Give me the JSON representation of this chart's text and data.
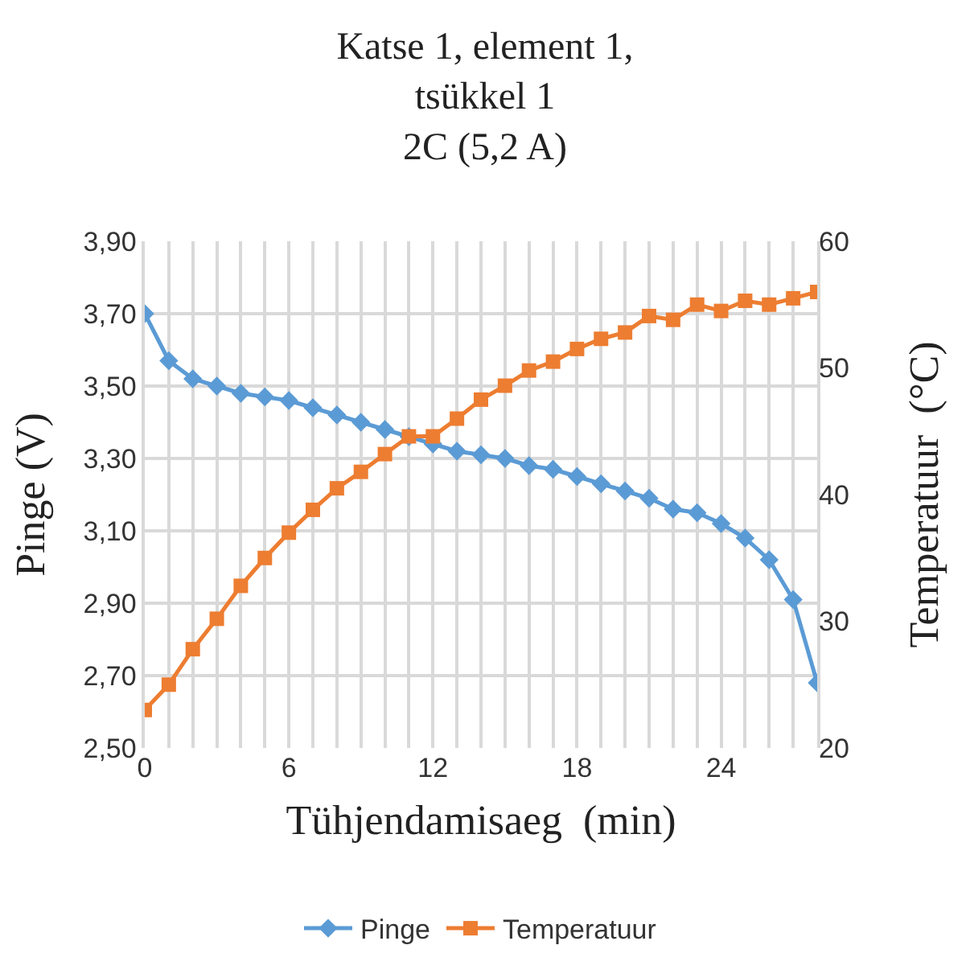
{
  "chart_data": {
    "type": "line",
    "title": "Katse 1, element 1,\ntsükkel 1\n2C (5,2 A)",
    "xlabel": "Tühjendamisaeg  (min)",
    "ylabel": "Pinge (V)",
    "y2label": "Temperatuur  (°C)",
    "x": [
      0,
      1,
      2,
      3,
      4,
      5,
      6,
      7,
      8,
      9,
      10,
      11,
      12,
      13,
      14,
      15,
      16,
      17,
      18,
      19,
      20,
      21,
      22,
      23,
      24,
      25,
      26,
      27,
      28
    ],
    "xlim": [
      0,
      28
    ],
    "xticks": [
      0,
      {
        "value": 1,
        "label": null
      },
      {
        "value": 2,
        "label": null
      },
      {
        "value": 3,
        "label": null
      },
      {
        "value": 4,
        "label": null
      },
      {
        "value": 5,
        "label": null
      },
      6,
      {
        "value": 7,
        "label": null
      },
      {
        "value": 8,
        "label": null
      },
      {
        "value": 9,
        "label": null
      },
      {
        "value": 10,
        "label": null
      },
      {
        "value": 11,
        "label": null
      },
      12,
      {
        "value": 13,
        "label": null
      },
      {
        "value": 14,
        "label": null
      },
      {
        "value": 15,
        "label": null
      },
      {
        "value": 16,
        "label": null
      },
      {
        "value": 17,
        "label": null
      },
      18,
      {
        "value": 19,
        "label": null
      },
      {
        "value": 20,
        "label": null
      },
      {
        "value": 21,
        "label": null
      },
      {
        "value": 22,
        "label": null
      },
      {
        "value": 23,
        "label": null
      },
      24,
      {
        "value": 25,
        "label": null
      },
      {
        "value": 26,
        "label": null
      },
      {
        "value": 27,
        "label": null
      }
    ],
    "ylim": [
      2.5,
      3.9
    ],
    "yticks": [
      {
        "value": 2.5,
        "label": "2,50"
      },
      {
        "value": 2.7,
        "label": "2,70"
      },
      {
        "value": 2.9,
        "label": "2,90"
      },
      {
        "value": 3.1,
        "label": "3,10"
      },
      {
        "value": 3.3,
        "label": "3,30"
      },
      {
        "value": 3.5,
        "label": "3,50"
      },
      {
        "value": 3.7,
        "label": "3,70"
      },
      {
        "value": 3.9,
        "label": "3,90"
      }
    ],
    "y2lim": [
      20,
      60
    ],
    "y2ticks": [
      20,
      30,
      40,
      50,
      60
    ],
    "series": [
      {
        "name": "Pinge",
        "color": "#5b9bd5",
        "marker": "diamond",
        "values": [
          3.7,
          3.57,
          3.52,
          3.5,
          3.48,
          3.47,
          3.46,
          3.44,
          3.42,
          3.4,
          3.38,
          3.36,
          3.34,
          3.32,
          3.31,
          3.3,
          3.28,
          3.27,
          3.25,
          3.23,
          3.21,
          3.19,
          3.16,
          3.15,
          3.12,
          3.08,
          3.02,
          2.91,
          2.68
        ]
      },
      {
        "name": "Temperatuur",
        "color": "#ed7d31",
        "marker": "square",
        "axis": "y2",
        "values": [
          23,
          25,
          27.8,
          30.2,
          32.8,
          35,
          37,
          38.8,
          40.5,
          41.8,
          43.2,
          44.6,
          44.6,
          46,
          47.5,
          48.6,
          49.8,
          50.5,
          51.5,
          52.3,
          52.8,
          54.1,
          53.8,
          55,
          54.5,
          55.3,
          55,
          55.5,
          56
        ]
      }
    ],
    "grid": true,
    "legend": "bottom",
    "line_style": "solid"
  }
}
